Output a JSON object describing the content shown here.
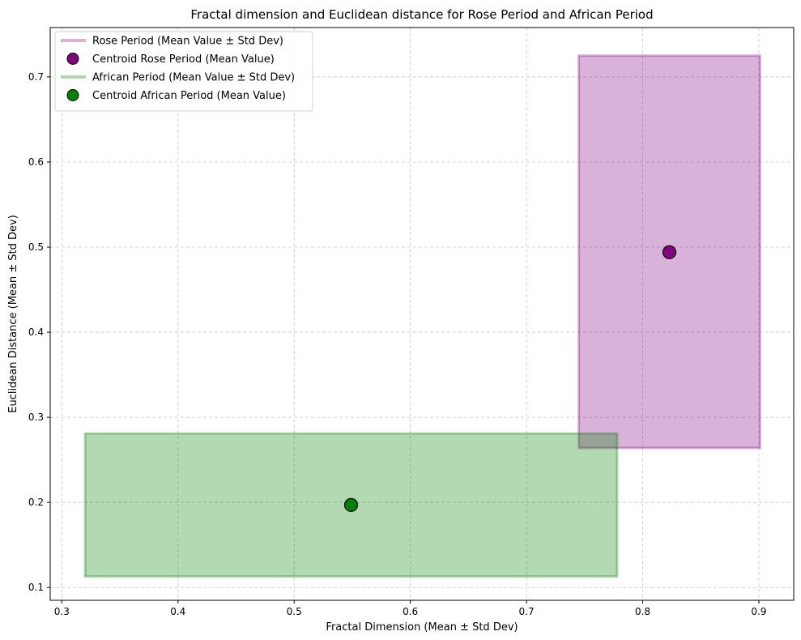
{
  "chart_data": {
    "type": "scatter",
    "title": "Fractal dimension and Euclidean distance for Rose Period and African Period",
    "xlabel": "Fractal Dimension (Mean ± Std Dev)",
    "ylabel": "Euclidean Distance (Mean ± Std Dev)",
    "xlim": [
      0.29,
      0.93
    ],
    "ylim": [
      0.085,
      0.758
    ],
    "xticks": [
      0.3,
      0.4,
      0.5,
      0.6,
      0.7,
      0.8,
      0.9
    ],
    "yticks": [
      0.1,
      0.2,
      0.3,
      0.4,
      0.5,
      0.6,
      0.7
    ],
    "grid": true,
    "legend_position": "top-left",
    "series": [
      {
        "name": "Rose Period (Mean Value ± Std Dev)",
        "kind": "rectangle",
        "x_range": [
          0.745,
          0.901
        ],
        "y_range": [
          0.264,
          0.725
        ],
        "color": "#800080"
      },
      {
        "name": "Centroid Rose Period (Mean Value)",
        "kind": "point",
        "x": 0.823,
        "y": 0.494,
        "color": "#800080"
      },
      {
        "name": "African Period (Mean Value ± Std Dev)",
        "kind": "rectangle",
        "x_range": [
          0.32,
          0.778
        ],
        "y_range": [
          0.113,
          0.281
        ],
        "color": "#008000"
      },
      {
        "name": "Centroid African Period (Mean Value)",
        "kind": "point",
        "x": 0.549,
        "y": 0.197,
        "color": "#008000"
      }
    ]
  }
}
